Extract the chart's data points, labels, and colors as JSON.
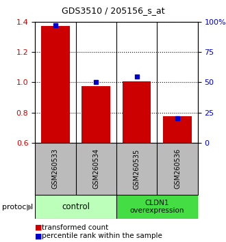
{
  "title": "GDS3510 / 205156_s_at",
  "samples": [
    "GSM260533",
    "GSM260534",
    "GSM260535",
    "GSM260536"
  ],
  "red_values": [
    1.37,
    0.975,
    1.005,
    0.775
  ],
  "blue_values": [
    97,
    50,
    55,
    20
  ],
  "ylim_left": [
    0.6,
    1.4
  ],
  "ylim_right": [
    0,
    100
  ],
  "yticks_left": [
    0.6,
    0.8,
    1.0,
    1.2,
    1.4
  ],
  "yticks_right": [
    0,
    25,
    50,
    75,
    100
  ],
  "ytick_labels_right": [
    "0",
    "25",
    "50",
    "75",
    "100%"
  ],
  "red_color": "#cc0000",
  "blue_color": "#0000cc",
  "bar_width": 0.7,
  "groups": [
    {
      "label": "control",
      "color": "#bbffbb"
    },
    {
      "label": "CLDN1\noverexpression",
      "color": "#44dd44"
    }
  ],
  "protocol_label": "protocol",
  "legend_red": "transformed count",
  "legend_blue": "percentile rank within the sample",
  "background_color": "#ffffff",
  "xticklabel_area_color": "#bbbbbb",
  "title_fontsize": 9,
  "tick_fontsize": 8,
  "label_fontsize": 7.5
}
